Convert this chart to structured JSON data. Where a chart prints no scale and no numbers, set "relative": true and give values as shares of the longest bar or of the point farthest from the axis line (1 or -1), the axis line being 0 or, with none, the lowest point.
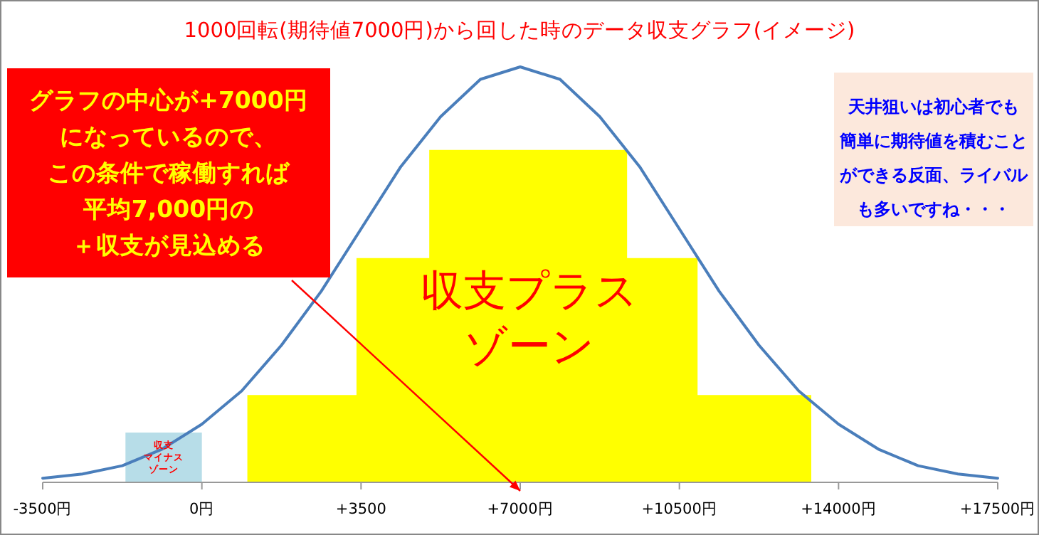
{
  "chart_data": {
    "type": "line",
    "title": "1000回転(期待値7000円)から回した時のデータ収支グラフ(イメージ)",
    "relative": true,
    "tick_labels": "x",
    "grid": false,
    "marker": "none",
    "xlim": [
      -3500,
      17500
    ],
    "xticks": [
      {
        "value": -3500,
        "label": "-3500円"
      },
      {
        "value": 0,
        "label": "0円"
      },
      {
        "value": 3500,
        "label": "+3500"
      },
      {
        "value": 7000,
        "label": "+7000円"
      },
      {
        "value": 10500,
        "label": "+10500円"
      },
      {
        "value": 14000,
        "label": "+14000円"
      },
      {
        "value": 17500,
        "label": "+17500円"
      }
    ],
    "series": [
      {
        "name": "収支プラスゾーン",
        "type": "area",
        "color": "#ffff00",
        "x": [
          1000,
          1000,
          3400,
          3400,
          5000,
          5000,
          9350,
          9350,
          10900,
          10900,
          13400,
          13400
        ],
        "values": [
          0,
          0.21,
          0.21,
          0.54,
          0.54,
          0.8,
          0.8,
          0.54,
          0.54,
          0.21,
          0.21,
          0
        ]
      },
      {
        "name": "収支マイナスゾーン",
        "type": "area",
        "color": "#b7dde8",
        "x": [
          -1680,
          -1680,
          0,
          0
        ],
        "values": [
          0,
          0.12,
          0.12,
          0
        ]
      },
      {
        "color": "#4a7ebb",
        "line_style": "solid",
        "x": [
          -3500,
          -2625,
          -1750,
          -875,
          0,
          875,
          1750,
          2625,
          3500,
          4375,
          5250,
          6125,
          7000,
          7875,
          8750,
          9625,
          10500,
          11375,
          12250,
          13125,
          14000,
          14875,
          15750,
          16625,
          17500
        ],
        "values": [
          0.01,
          0.02,
          0.04,
          0.08,
          0.14,
          0.22,
          0.33,
          0.46,
          0.61,
          0.76,
          0.88,
          0.97,
          1,
          0.97,
          0.88,
          0.76,
          0.61,
          0.46,
          0.33,
          0.22,
          0.14,
          0.08,
          0.04,
          0.02,
          0.01
        ]
      }
    ],
    "annotations": [
      "グラフの中心が+7000円",
      "になっているので、",
      "この条件で稼働すれば",
      "平均7,000円の",
      "＋収支が見込める",
      "天井狙いは初心者でも",
      "簡単に期待値を積むこと",
      "ができる反面、ライバル",
      "も多いですね・・・"
    ]
  }
}
